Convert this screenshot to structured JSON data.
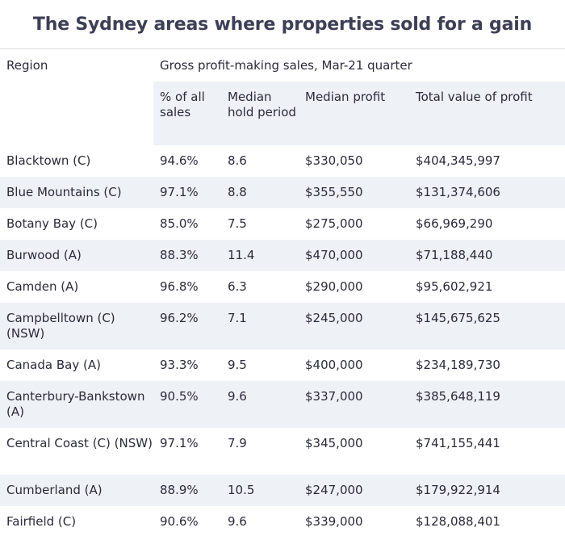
{
  "title": "The Sydney areas where properties sold for a gain",
  "header": {
    "region": "Region",
    "group": "Gross profit-making sales, Mar-21 quarter",
    "pct": "% of all sales",
    "hold": "Median hold period",
    "median": "Median profit",
    "total": "Total value of profit"
  },
  "rows": [
    {
      "region": "Blacktown (C)",
      "pct": "94.6%",
      "hold": "8.6",
      "median": "$330,050",
      "total": "$404,345,997"
    },
    {
      "region": "Blue Mountains (C)",
      "pct": "97.1%",
      "hold": "8.8",
      "median": "$355,550",
      "total": "$131,374,606"
    },
    {
      "region": "Botany Bay (C)",
      "pct": "85.0%",
      "hold": "7.5",
      "median": "$275,000",
      "total": "$66,969,290"
    },
    {
      "region": "Burwood (A)",
      "pct": "88.3%",
      "hold": "11.4",
      "median": "$470,000",
      "total": "$71,188,440"
    },
    {
      "region": "Camden (A)",
      "pct": "96.8%",
      "hold": "6.3",
      "median": "$290,000",
      "total": "$95,602,921"
    },
    {
      "region": "Campbelltown (C) (NSW)",
      "pct": "96.2%",
      "hold": "7.1",
      "median": "$245,000",
      "total": "$145,675,625"
    },
    {
      "region": "Canada Bay (A)",
      "pct": "93.3%",
      "hold": "9.5",
      "median": "$400,000",
      "total": "$234,189,730"
    },
    {
      "region": "Canterbury-Bankstown (A)",
      "pct": "90.5%",
      "hold": "9.6",
      "median": "$337,000",
      "total": "$385,648,119"
    },
    {
      "region": "Central Coast (C) (NSW)",
      "pct": "97.1%",
      "hold": "7.9",
      "median": "$345,000",
      "total": "$741,155,441"
    },
    {
      "region": "Cumberland (A)",
      "pct": "88.9%",
      "hold": "10.5",
      "median": "$247,000",
      "total": "$179,922,914"
    },
    {
      "region": "Fairfield (C)",
      "pct": "90.6%",
      "hold": "9.6",
      "median": "$339,000",
      "total": "$128,088,401"
    }
  ]
}
